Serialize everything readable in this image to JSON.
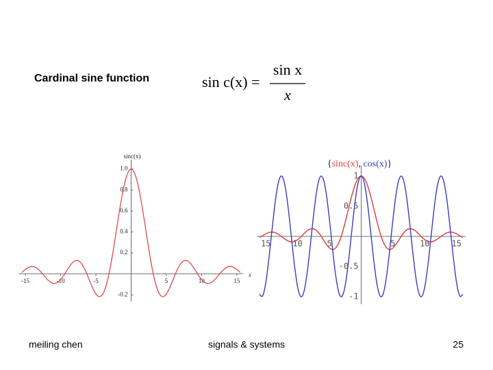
{
  "slide": {
    "heading": "Cardinal sine function",
    "formula": {
      "lhs": "sin c(x) =",
      "numerator": "sin x",
      "denominator": "x"
    },
    "footer": {
      "author": "meiling chen",
      "course": "signals & systems",
      "page": "25"
    }
  },
  "chart_data": [
    {
      "type": "line",
      "ylabel": "sinc(x)",
      "xlabel": "x",
      "x": [
        -15.5,
        -15,
        -14.5,
        -14,
        -13.5,
        -13,
        -12.5,
        -12,
        -11.5,
        -11,
        -10.5,
        -10,
        -9.5,
        -9,
        -8.5,
        -8,
        -7.5,
        -7,
        -6.5,
        -6,
        -5.5,
        -5,
        -4.5,
        -4,
        -3.5,
        -3,
        -2.5,
        -2,
        -1.5,
        -1,
        -0.5,
        0,
        0.5,
        1,
        1.5,
        2,
        2.5,
        3,
        3.5,
        4,
        4.5,
        5,
        5.5,
        6,
        6.5,
        7,
        7.5,
        8,
        8.5,
        9,
        9.5,
        10,
        10.5,
        11,
        11.5,
        12,
        12.5,
        13,
        13.5,
        14,
        14.5,
        15,
        15.5
      ],
      "series": [
        {
          "color": "#e03a3a",
          "values": [
            0.013,
            0.043,
            0.064,
            0.071,
            0.06,
            0.032,
            -0.005,
            -0.045,
            -0.076,
            -0.091,
            -0.084,
            -0.054,
            -0.008,
            0.046,
            0.094,
            0.124,
            0.125,
            0.094,
            0.033,
            -0.047,
            -0.128,
            -0.192,
            -0.217,
            -0.189,
            -0.1,
            0.047,
            0.239,
            0.455,
            0.665,
            0.841,
            0.959,
            1,
            0.959,
            0.841,
            0.665,
            0.455,
            0.239,
            0.047,
            -0.1,
            -0.189,
            -0.217,
            -0.192,
            -0.128,
            -0.047,
            0.033,
            0.094,
            0.125,
            0.124,
            0.094,
            0.046,
            -0.008,
            -0.054,
            -0.084,
            -0.091,
            -0.076,
            -0.045,
            -0.005,
            0.032,
            0.06,
            0.071,
            0.064,
            0.043,
            0.013
          ]
        }
      ],
      "xlim": [
        -15.5,
        15.5
      ],
      "ylim": [
        -0.25,
        1.05
      ],
      "xticks": [
        -15,
        -10,
        -5,
        5,
        10,
        15
      ],
      "yticks": [
        -0.2,
        0.2,
        0.4,
        0.6,
        0.8,
        {
          "value": 1,
          "label": "1.0"
        }
      ]
    },
    {
      "type": "line",
      "title": "{sinc(x), cos(x)}",
      "x": [
        -16,
        -15.5,
        -15,
        -14.5,
        -14,
        -13.5,
        -13,
        -12.5,
        -12,
        -11.5,
        -11,
        -10.5,
        -10,
        -9.5,
        -9,
        -8.5,
        -8,
        -7.5,
        -7,
        -6.5,
        -6,
        -5.5,
        -5,
        -4.5,
        -4,
        -3.5,
        -3,
        -2.5,
        -2,
        -1.5,
        -1,
        -0.5,
        0,
        0.5,
        1,
        1.5,
        2,
        2.5,
        3,
        3.5,
        4,
        4.5,
        5,
        5.5,
        6,
        6.5,
        7,
        7.5,
        8,
        8.5,
        9,
        9.5,
        10,
        10.5,
        11,
        11.5,
        12,
        12.5,
        13,
        13.5,
        14,
        14.5,
        15,
        15.5,
        16
      ],
      "series": [
        {
          "name": "sinc(x)",
          "color": "#e03a3a",
          "values": [
            -0.018,
            0.013,
            0.043,
            0.064,
            0.071,
            0.06,
            0.032,
            -0.005,
            -0.045,
            -0.076,
            -0.091,
            -0.084,
            -0.054,
            -0.008,
            0.046,
            0.094,
            0.124,
            0.125,
            0.094,
            0.033,
            -0.047,
            -0.128,
            -0.192,
            -0.217,
            -0.189,
            -0.1,
            0.047,
            0.239,
            0.455,
            0.665,
            0.841,
            0.959,
            1,
            0.959,
            0.841,
            0.665,
            0.455,
            0.239,
            0.047,
            -0.1,
            -0.189,
            -0.217,
            -0.192,
            -0.128,
            -0.047,
            0.033,
            0.094,
            0.125,
            0.124,
            0.094,
            0.046,
            -0.008,
            -0.054,
            -0.084,
            -0.091,
            -0.076,
            -0.045,
            -0.005,
            0.032,
            0.06,
            0.071,
            0.064,
            0.043,
            0.013,
            -0.018
          ]
        },
        {
          "name": "cos(x)",
          "color": "#3a3ac0",
          "values": [
            -0.958,
            -0.984,
            -0.76,
            -0.347,
            0.137,
            0.595,
            0.907,
            0.998,
            0.844,
            0.483,
            0.004,
            -0.476,
            -0.839,
            -0.997,
            -0.911,
            -0.602,
            -0.146,
            0.347,
            0.754,
            0.977,
            0.96,
            0.709,
            0.284,
            -0.211,
            -0.654,
            -0.937,
            -0.99,
            -0.801,
            -0.416,
            0.071,
            0.54,
            0.878,
            1,
            0.878,
            0.54,
            0.071,
            -0.416,
            -0.801,
            -0.99,
            -0.937,
            -0.654,
            -0.211,
            0.284,
            0.709,
            0.96,
            0.977,
            0.754,
            0.347,
            -0.146,
            -0.602,
            -0.911,
            -0.997,
            -0.839,
            -0.476,
            0.004,
            0.483,
            0.844,
            0.998,
            0.907,
            0.595,
            0.137,
            -0.347,
            -0.76,
            -0.984,
            -0.958
          ]
        }
      ],
      "xlim": [
        -16,
        16
      ],
      "ylim": [
        -1.1,
        1.1
      ],
      "xticks": [
        {
          "value": -15,
          "label": "15"
        },
        {
          "value": -10,
          "label": "10"
        },
        {
          "value": -5,
          "label": "5"
        },
        5,
        10,
        15
      ],
      "yticks": [
        -1,
        -0.5,
        0.5,
        1
      ]
    }
  ]
}
